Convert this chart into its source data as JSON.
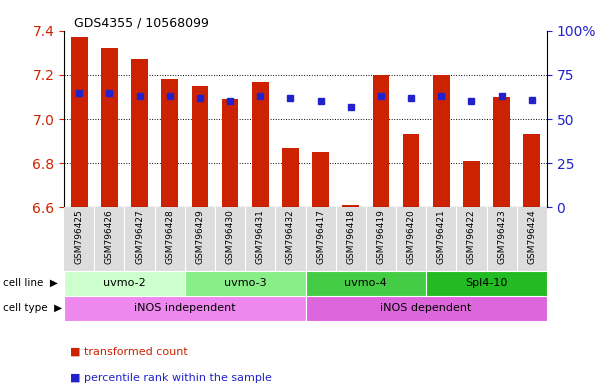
{
  "title": "GDS4355 / 10568099",
  "samples": [
    "GSM796425",
    "GSM796426",
    "GSM796427",
    "GSM796428",
    "GSM796429",
    "GSM796430",
    "GSM796431",
    "GSM796432",
    "GSM796417",
    "GSM796418",
    "GSM796419",
    "GSM796420",
    "GSM796421",
    "GSM796422",
    "GSM796423",
    "GSM796424"
  ],
  "transformed_count": [
    7.37,
    7.32,
    7.27,
    7.18,
    7.15,
    7.09,
    7.17,
    6.87,
    6.85,
    6.61,
    7.2,
    6.93,
    7.2,
    6.81,
    7.1,
    6.93
  ],
  "percentile": [
    65,
    65,
    63,
    63,
    62,
    60,
    63,
    62,
    60,
    57,
    63,
    62,
    63,
    60,
    63,
    61
  ],
  "y_min": 6.6,
  "y_max": 7.4,
  "y_ticks": [
    6.6,
    6.8,
    7.0,
    7.2,
    7.4
  ],
  "right_y_ticks": [
    0,
    25,
    50,
    75,
    100
  ],
  "bar_color": "#cc2200",
  "dot_color": "#2222cc",
  "grid_color": "#000000",
  "cell_line_groups": [
    {
      "label": "uvmo-2",
      "start": 0,
      "end": 3,
      "color": "#ccffcc"
    },
    {
      "label": "uvmo-3",
      "start": 4,
      "end": 7,
      "color": "#88ee88"
    },
    {
      "label": "uvmo-4",
      "start": 8,
      "end": 11,
      "color": "#44cc44"
    },
    {
      "label": "Spl4-10",
      "start": 12,
      "end": 15,
      "color": "#22bb22"
    }
  ],
  "cell_type_groups": [
    {
      "label": "iNOS independent",
      "start": 0,
      "end": 7,
      "color": "#ee88ee"
    },
    {
      "label": "iNOS dependent",
      "start": 8,
      "end": 15,
      "color": "#dd66dd"
    }
  ],
  "bg_color": "#ffffff",
  "tick_label_color_left": "#cc2200",
  "tick_label_color_right": "#2222cc",
  "xtick_bg": "#dddddd"
}
